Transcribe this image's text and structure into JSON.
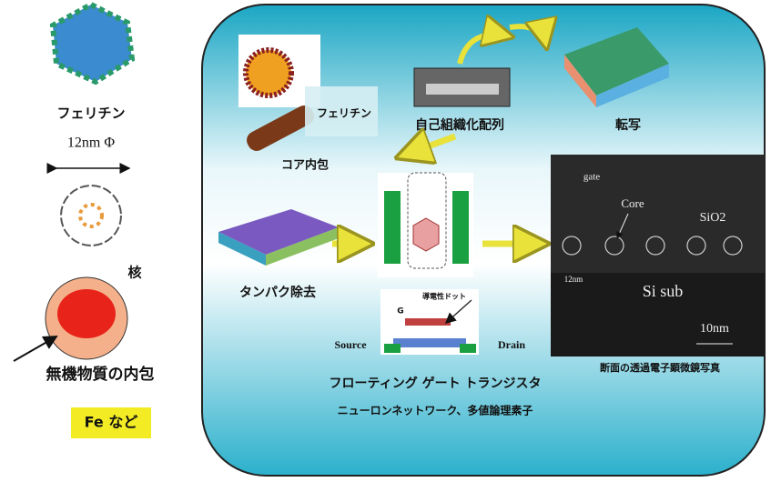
{
  "left": {
    "ferritin": "フェリチン",
    "size": "12nm Φ",
    "nucleus": "核",
    "inclusion": "無機物質の内包",
    "fe": "Fe など"
  },
  "panel": {
    "ferritin_overlay": "フェリチン",
    "core_inclusion": "コア内包",
    "self_assembly": "自己組織化配列",
    "transfer": "転写",
    "protein_removal": "タンパク除去",
    "device": {
      "dot": "導電性ドット",
      "gate": "G",
      "source": "Source",
      "drain": "Drain"
    },
    "fgt": "フローティング ゲート トランジスタ",
    "applications": "ニューロンネットワーク、多値論理素子",
    "tem": {
      "gate": "gate",
      "core": "Core",
      "oxide": "SiO2",
      "substrate": "Si sub",
      "scale": "10nm",
      "size": "12nm",
      "caption": "断面の透過電子顕微鏡写真"
    }
  }
}
